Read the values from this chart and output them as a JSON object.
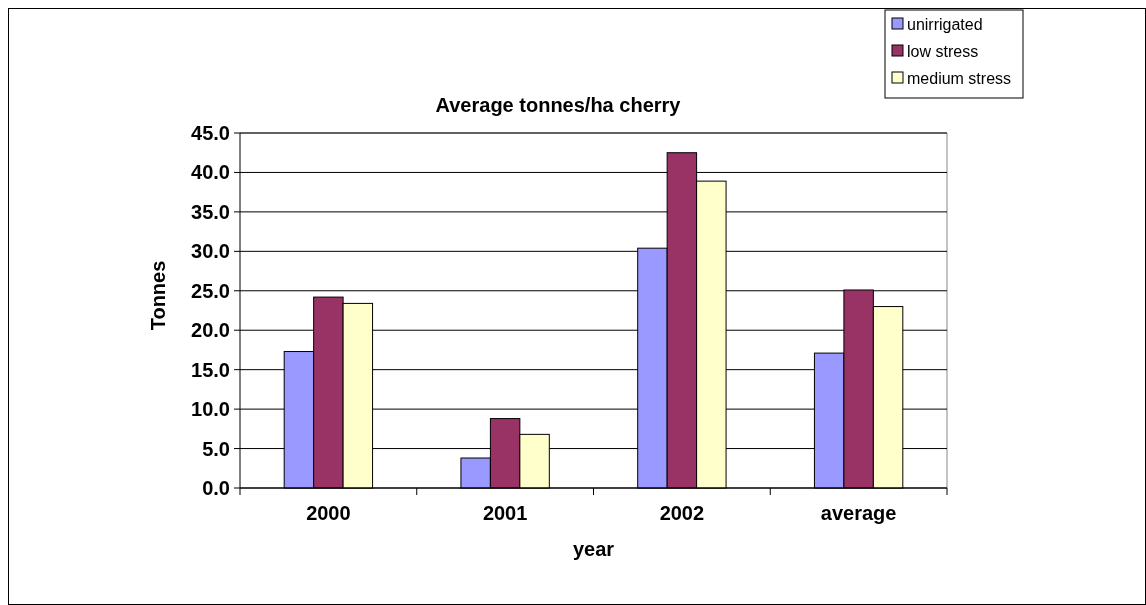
{
  "chart_data": {
    "type": "bar",
    "title": "Average tonnes/ha cherry",
    "xlabel": "year",
    "ylabel": "Tonnes",
    "categories": [
      "2000",
      "2001",
      "2002",
      "average"
    ],
    "series": [
      {
        "name": "unirrigated",
        "color": "#9999ff",
        "values": [
          17.3,
          3.8,
          30.4,
          17.1
        ]
      },
      {
        "name": "low stress",
        "color": "#993366",
        "values": [
          24.2,
          8.8,
          42.5,
          25.1
        ]
      },
      {
        "name": "medium stress",
        "color": "#ffffcc",
        "values": [
          23.4,
          6.8,
          38.9,
          23.0
        ]
      }
    ],
    "ylim": [
      0,
      45
    ],
    "yticks": [
      {
        "value": 0,
        "label": "0.0"
      },
      {
        "value": 5,
        "label": "5.0"
      },
      {
        "value": 10,
        "label": "10.0"
      },
      {
        "value": 15,
        "label": "15.0"
      },
      {
        "value": 20,
        "label": "20.0"
      },
      {
        "value": 25,
        "label": "25.0"
      },
      {
        "value": 30,
        "label": "30.0"
      },
      {
        "value": 35,
        "label": "35.0"
      },
      {
        "value": 40,
        "label": "40.0"
      },
      {
        "value": 45,
        "label": "45.0"
      }
    ],
    "grid": "y",
    "legend": "top right"
  }
}
